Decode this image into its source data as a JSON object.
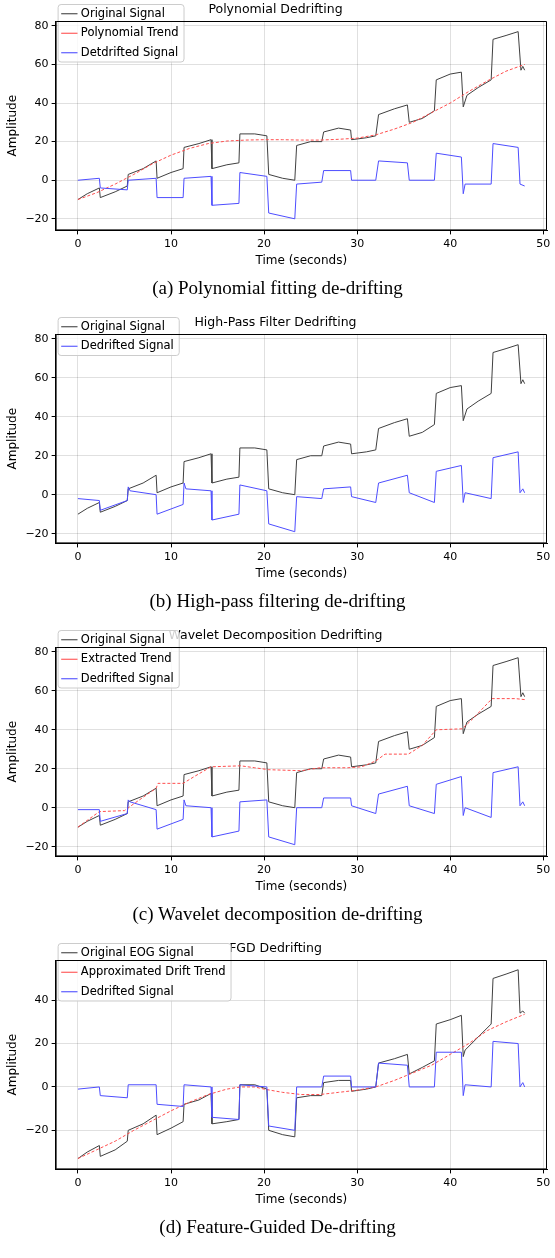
{
  "chart_data": [
    {
      "type": "line",
      "title": "Polynomial Dedrifting",
      "xlabel": "Time (seconds)",
      "ylabel": "Amplitude",
      "xlim": [
        -2.4,
        50.4
      ],
      "xticks": [
        0,
        10,
        20,
        30,
        40,
        50
      ],
      "ylim": [
        -26,
        82.5
      ],
      "yticks": [
        -20,
        0,
        20,
        40,
        60,
        80
      ],
      "grid": true,
      "legend": "top left",
      "marker": "none",
      "annotations": [
        "(a) Polynomial fitting de-drifting"
      ],
      "series": [
        {
          "name": "Original Signal",
          "color": "#404040",
          "x": [
            0,
            1,
            2.3,
            2.4,
            4,
            5.3,
            5.4,
            7,
            8.4,
            8.5,
            10,
            11.3,
            11.4,
            13,
            14.3,
            14.4,
            16,
            17.3,
            17.4,
            19,
            20.3,
            20.5,
            22,
            23.3,
            23.5,
            25,
            26.2,
            26.4,
            28,
            29.3,
            29.4,
            31,
            32,
            32.3,
            34,
            35.4,
            35.6,
            37,
            38.3,
            38.5,
            40,
            41.2,
            41.4,
            41.8,
            43,
            44.4,
            44.6,
            46,
            47.3,
            47.6,
            47.8,
            48
          ],
          "values": [
            -10,
            -7,
            -4,
            -9,
            -6,
            -3,
            3,
            6,
            10,
            1,
            4,
            6,
            17,
            19,
            21,
            6,
            8,
            9,
            24,
            24,
            23,
            3,
            1,
            0,
            18,
            20,
            20,
            25,
            27,
            26,
            21,
            22,
            23,
            34,
            37,
            39,
            30,
            32,
            36,
            52,
            55,
            56,
            38,
            44,
            48,
            52,
            73,
            75,
            77,
            57,
            59,
            57
          ]
        },
        {
          "name": "Polynomial Trend",
          "color": "#ff4d4d",
          "line_style": "dashed",
          "x": [
            0,
            2,
            4,
            6,
            8,
            10,
            12,
            14,
            16,
            18,
            20,
            22,
            24,
            26,
            28,
            30,
            32,
            34,
            36,
            38,
            40,
            42,
            44,
            46,
            48
          ],
          "values": [
            -10,
            -6.5,
            -2,
            3,
            8.5,
            13,
            16.5,
            19,
            20.3,
            20.8,
            21,
            21,
            20.8,
            20.8,
            21.2,
            21.8,
            23.5,
            26.5,
            30,
            35,
            40,
            46,
            51.5,
            56.5,
            60
          ]
        },
        {
          "name": "Detdrifted Signal",
          "color": "#4d4dff",
          "x": [
            0,
            2.3,
            2.4,
            5.3,
            5.4,
            8.4,
            8.5,
            11.3,
            11.4,
            14.3,
            14.4,
            17.3,
            17.4,
            20.3,
            20.5,
            23.3,
            23.5,
            26.2,
            26.4,
            29.3,
            29.4,
            32,
            32.3,
            35.4,
            35.6,
            38.3,
            38.5,
            41.2,
            41.4,
            41.6,
            44.4,
            44.6,
            47.3,
            47.5,
            48
          ],
          "values": [
            0,
            1,
            -4,
            -5,
            0,
            1,
            -9,
            -9,
            1,
            2,
            -13,
            -12,
            4,
            2,
            -17,
            -20,
            -2,
            -1,
            5,
            5,
            0,
            0,
            10,
            9,
            0,
            0,
            14,
            12,
            -7,
            -2,
            -2,
            19,
            17,
            -2,
            -3
          ]
        }
      ]
    },
    {
      "type": "line",
      "title": "High-Pass Filter Dedrifting",
      "xlabel": "Time (seconds)",
      "ylabel": "Amplitude",
      "xlim": [
        -2.4,
        50.4
      ],
      "xticks": [
        0,
        10,
        20,
        30,
        40,
        50
      ],
      "ylim": [
        -25,
        82.5
      ],
      "yticks": [
        -20,
        0,
        20,
        40,
        60,
        80
      ],
      "grid": true,
      "legend": "top left",
      "marker": "none",
      "annotations": [
        "(b) High-pass filtering de-drifting"
      ],
      "series": [
        {
          "name": "Original Signal",
          "color": "#404040",
          "x": [
            0,
            1,
            2.3,
            2.4,
            4,
            5.3,
            5.4,
            7,
            8.4,
            8.5,
            10,
            11.3,
            11.4,
            13,
            14.3,
            14.4,
            16,
            17.3,
            17.4,
            19,
            20.3,
            20.5,
            22,
            23.3,
            23.5,
            25,
            26.2,
            26.4,
            28,
            29.3,
            29.4,
            31,
            32,
            32.3,
            34,
            35.4,
            35.6,
            37,
            38.3,
            38.5,
            40,
            41.2,
            41.4,
            41.8,
            43,
            44.4,
            44.6,
            46,
            47.3,
            47.6,
            47.8,
            48
          ],
          "values": [
            -10,
            -7,
            -4,
            -9,
            -6,
            -3,
            3,
            6,
            10,
            1,
            4,
            6,
            17,
            19,
            21,
            6,
            8,
            9,
            24,
            24,
            23,
            3,
            1,
            0,
            18,
            20,
            20,
            25,
            27,
            26,
            21,
            22,
            23,
            34,
            37,
            39,
            30,
            32,
            36,
            52,
            55,
            56,
            38,
            44,
            48,
            52,
            73,
            75,
            77,
            57,
            59,
            57
          ]
        },
        {
          "name": "Dedrifted Signal",
          "color": "#4d4dff",
          "x": [
            0,
            2.3,
            2.4,
            5.3,
            5.4,
            5.6,
            8.4,
            8.5,
            11.3,
            11.4,
            11.6,
            14.3,
            14.4,
            17.3,
            17.4,
            20.3,
            20.5,
            23.3,
            23.5,
            26.2,
            26.4,
            29.3,
            29.4,
            32,
            32.3,
            35.4,
            35.6,
            38.3,
            38.5,
            41.2,
            41.4,
            41.6,
            44.4,
            44.6,
            47.3,
            47.5,
            47.8,
            48
          ],
          "values": [
            -2,
            -3,
            -8,
            -3,
            4,
            2,
            0,
            -10,
            -5,
            6,
            3,
            2,
            -13,
            -10,
            5,
            2,
            -15,
            -19,
            -1,
            -2,
            3,
            4,
            -1,
            -4,
            6,
            10,
            1,
            -4,
            12,
            15,
            -4,
            1,
            -2,
            19,
            22,
            1,
            3,
            1
          ]
        }
      ]
    },
    {
      "type": "line",
      "title": "Wavelet Decomposition Dedrifting",
      "xlabel": "Time (seconds)",
      "ylabel": "Amplitude",
      "xlim": [
        -2.4,
        50.4
      ],
      "xticks": [
        0,
        10,
        20,
        30,
        40,
        50
      ],
      "ylim": [
        -25,
        82.5
      ],
      "yticks": [
        -20,
        0,
        20,
        40,
        60,
        80
      ],
      "grid": true,
      "legend": "top left",
      "marker": "none",
      "annotations": [
        "(c) Wavelet decomposition de-drifting"
      ],
      "series": [
        {
          "name": "Original Signal",
          "color": "#404040",
          "x": [
            0,
            1,
            2.3,
            2.4,
            4,
            5.3,
            5.4,
            7,
            8.4,
            8.5,
            10,
            11.3,
            11.4,
            13,
            14.3,
            14.4,
            16,
            17.3,
            17.4,
            19,
            20.3,
            20.5,
            22,
            23.3,
            23.5,
            25,
            26.2,
            26.4,
            28,
            29.3,
            29.4,
            31,
            32,
            32.3,
            34,
            35.4,
            35.6,
            37,
            38.3,
            38.5,
            40,
            41.2,
            41.4,
            41.8,
            43,
            44.4,
            44.6,
            46,
            47.3,
            47.6,
            47.8,
            48
          ],
          "values": [
            -10,
            -7,
            -4,
            -9,
            -6,
            -3,
            3,
            6,
            10,
            1,
            4,
            6,
            17,
            19,
            21,
            6,
            8,
            9,
            24,
            24,
            23,
            3,
            1,
            0,
            18,
            20,
            20,
            25,
            27,
            26,
            21,
            22,
            23,
            34,
            37,
            39,
            30,
            32,
            36,
            52,
            55,
            56,
            38,
            44,
            48,
            52,
            73,
            75,
            77,
            57,
            59,
            57
          ]
        },
        {
          "name": "Extracted Trend",
          "color": "#ff4d4d",
          "line_style": "dashed",
          "x": [
            0,
            2.3,
            5,
            6,
            8.4,
            8.6,
            11.3,
            12.5,
            14.3,
            17.5,
            19,
            20.5,
            24,
            26,
            29,
            30.5,
            32,
            33,
            35.5,
            37,
            38.5,
            41.3,
            42.5,
            44.5,
            47,
            48
          ],
          "values": [
            -10,
            -2,
            -1.5,
            2,
            10,
            12.5,
            12.5,
            16,
            21,
            21.5,
            20.5,
            19.5,
            19,
            20.5,
            20.5,
            21,
            24,
            27.5,
            27.5,
            32,
            40,
            40.5,
            46,
            56,
            56,
            55.5
          ]
        },
        {
          "name": "Dedrifted Signal",
          "color": "#4d4dff",
          "x": [
            0,
            2.3,
            2.4,
            5.3,
            5.4,
            5.6,
            8.4,
            8.5,
            11.3,
            11.4,
            11.6,
            14.3,
            14.4,
            17.3,
            17.4,
            20.3,
            20.5,
            23.3,
            23.5,
            26.2,
            26.4,
            29.3,
            29.4,
            32,
            32.3,
            35.4,
            35.6,
            38.3,
            38.5,
            41.2,
            41.4,
            41.6,
            44.4,
            44.6,
            47.3,
            47.5,
            47.8,
            48
          ],
          "values": [
            -1,
            -1,
            -7,
            -3,
            4,
            3,
            -1,
            -11,
            -6,
            4,
            1,
            0,
            -15,
            -12,
            3,
            4,
            -15,
            -19,
            0,
            0,
            5,
            5,
            1,
            -3,
            7,
            11,
            1,
            -3,
            12,
            16,
            -4,
            0,
            -5,
            18,
            21,
            1,
            3,
            1
          ]
        }
      ]
    },
    {
      "type": "line",
      "title": "FGD Dedrifting",
      "xlabel": "Time (seconds)",
      "ylabel": "Amplitude",
      "xlim": [
        -2.4,
        50.4
      ],
      "xticks": [
        0,
        10,
        20,
        30,
        40,
        50
      ],
      "ylim": [
        -38,
        58.5
      ],
      "yticks": [
        -20,
        0,
        20,
        40
      ],
      "grid": true,
      "legend": "top left",
      "marker": "none",
      "annotations": [
        "(d) Feature-Guided De-drifting"
      ],
      "series": [
        {
          "name": "Original EOG Signal",
          "color": "#404040",
          "x": [
            0,
            1,
            2.3,
            2.4,
            4,
            5.3,
            5.4,
            7,
            8.4,
            8.5,
            10,
            11.3,
            11.4,
            13,
            14.3,
            14.4,
            16,
            17.3,
            17.4,
            19,
            20.3,
            20.5,
            22,
            23.3,
            23.5,
            25,
            26.2,
            26.4,
            28,
            29.3,
            29.4,
            31,
            32,
            32.3,
            34,
            35.4,
            35.6,
            37,
            38.3,
            38.5,
            40,
            41.2,
            41.4,
            41.6,
            43,
            44.4,
            44.6,
            46,
            47.3,
            47.5,
            47.8,
            48
          ],
          "values": [
            -33,
            -30,
            -27,
            -32,
            -29,
            -25,
            -20,
            -17,
            -13,
            -22,
            -19,
            -16,
            -8,
            -6,
            -3,
            -17,
            -16,
            -15,
            1,
            1,
            -1,
            -20,
            -22,
            -23,
            -5,
            -4,
            -4,
            2,
            3,
            3,
            -2,
            -1,
            0,
            11,
            13,
            15,
            6,
            9,
            12,
            29,
            31,
            33,
            14,
            17,
            23,
            29,
            50,
            52,
            54,
            34,
            35,
            34
          ]
        },
        {
          "name": "Approximated Drift Trend",
          "color": "#ff4d4d",
          "line_style": "dashed",
          "x": [
            0,
            2,
            4,
            6,
            8,
            10,
            12,
            14,
            16,
            17.5,
            19,
            20,
            22,
            24,
            26,
            28,
            30,
            32,
            34,
            36,
            38,
            40,
            42,
            44,
            46,
            48
          ],
          "values": [
            -33,
            -29,
            -25,
            -20,
            -15.5,
            -11,
            -7,
            -3.5,
            -1,
            0,
            0,
            -1,
            -2.5,
            -3.5,
            -3.5,
            -2.5,
            -1.5,
            0,
            3,
            6.5,
            10,
            15,
            20,
            26,
            30,
            33.5
          ]
        },
        {
          "name": "Dedrifted Signal",
          "color": "#4d4dff",
          "x": [
            0,
            2.3,
            2.4,
            5.3,
            5.4,
            8.4,
            8.5,
            11.3,
            11.4,
            14.3,
            14.4,
            17.3,
            17.4,
            20.3,
            20.5,
            23.3,
            23.5,
            26.2,
            26.4,
            29.3,
            29.4,
            32,
            32.3,
            35.4,
            35.6,
            38.3,
            38.5,
            41.2,
            41.4,
            41.6,
            44.4,
            44.6,
            47.3,
            47.5,
            47.8,
            48
          ],
          "values": [
            -1,
            0,
            -4,
            -5,
            1,
            1,
            -8,
            -9,
            1,
            0,
            -14,
            -15,
            1,
            0,
            -18,
            -20,
            0,
            0,
            5,
            5,
            0,
            0,
            11,
            10,
            0,
            0,
            16,
            16,
            -4,
            1,
            0,
            21,
            20,
            0,
            2,
            0
          ]
        }
      ]
    }
  ]
}
